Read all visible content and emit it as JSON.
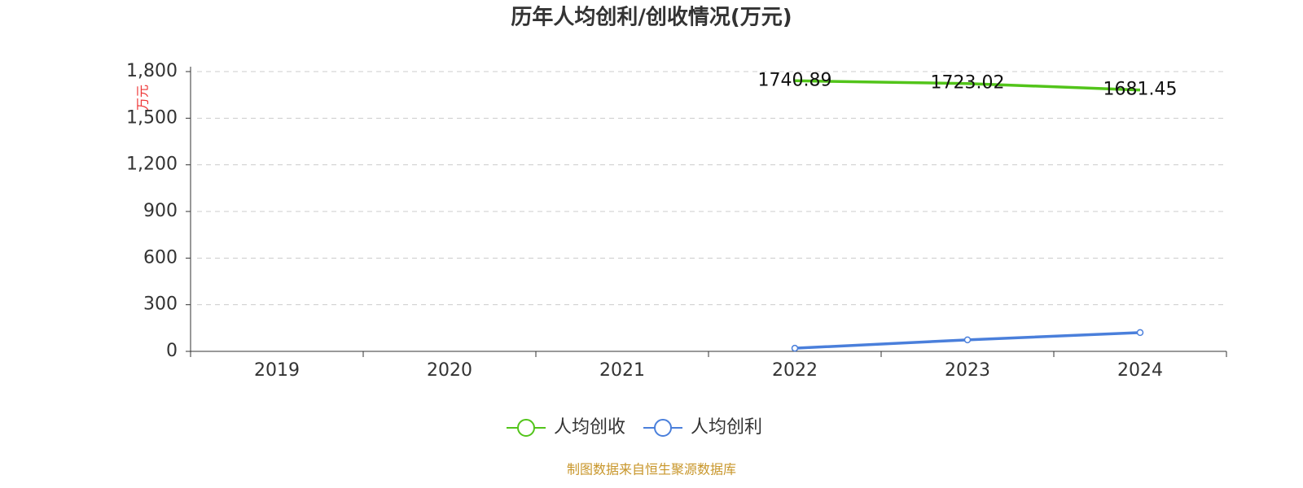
{
  "chart_data": {
    "type": "line",
    "title": "历年人均创利/创收情况(万元)",
    "y_label": "万元",
    "categories": [
      "2019",
      "2020",
      "2021",
      "2022",
      "2023",
      "2024"
    ],
    "series": [
      {
        "name": "人均创收",
        "color": "#52c41a",
        "values": [
          null,
          null,
          null,
          1740.89,
          1723.02,
          1681.45
        ],
        "labels": true,
        "markers": false
      },
      {
        "name": "人均创利",
        "color": "#4a7fdb",
        "values": [
          null,
          null,
          null,
          20,
          74,
          121
        ],
        "labels": false,
        "markers": true
      }
    ],
    "ylim": [
      0,
      1800
    ],
    "yticks": [
      0,
      300,
      600,
      900,
      {
        "value": 1200,
        "label": "1,200"
      },
      {
        "value": 1500,
        "label": "1,500"
      },
      {
        "value": 1800,
        "label": "1,800"
      }
    ],
    "grid": true,
    "legend": "bottom",
    "source": "制图数据来自恒生聚源数据库"
  }
}
